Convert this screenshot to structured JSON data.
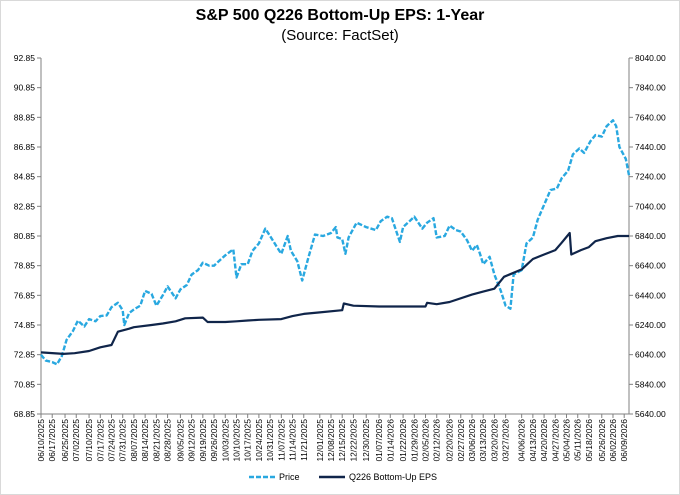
{
  "chart_data": {
    "type": "line",
    "title": "S&P 500 Q226 Bottom-Up EPS: 1-Year",
    "subtitle": "(Source: FactSet)",
    "colors": {
      "price": "#29a8e0",
      "eps": "#10254a"
    },
    "y_left": {
      "ylim": [
        68.85,
        92.85
      ],
      "ticks": [
        "92.85",
        "90.85",
        "88.85",
        "86.85",
        "84.85",
        "82.85",
        "80.85",
        "78.85",
        "76.85",
        "74.85",
        "72.85",
        "70.85",
        "68.85"
      ]
    },
    "y_right": {
      "ylim": [
        5640,
        8040
      ],
      "ticks": [
        "8040.00",
        "7840.00",
        "7640.00",
        "7440.00",
        "7240.00",
        "7040.00",
        "6840.00",
        "6640.00",
        "6440.00",
        "6240.00",
        "6040.00",
        "5840.00",
        "5640.00"
      ]
    },
    "x_ticks": [
      "06/10/2025",
      "06/17/2025",
      "06/25/2025",
      "07/02/2025",
      "07/10/2025",
      "07/17/2025",
      "07/24/2025",
      "07/31/2025",
      "08/07/2025",
      "08/14/2025",
      "08/21/2025",
      "08/28/2025",
      "09/05/2025",
      "09/12/2025",
      "09/19/2025",
      "09/26/2025",
      "10/03/2025",
      "10/10/2025",
      "10/17/2025",
      "10/24/2025",
      "10/31/2025",
      "11/07/2025",
      "11/14/2025",
      "11/21/2025",
      "12/01/2025",
      "12/08/2025",
      "12/15/2025",
      "12/22/2025",
      "12/30/2025",
      "01/07/2026",
      "01/14/2026",
      "01/22/2026",
      "01/29/2026",
      "02/05/2026",
      "02/12/2026",
      "02/20/2026",
      "02/27/2026",
      "03/06/2026",
      "03/13/2026",
      "03/20/2026",
      "03/27/2026",
      "04/06/2026",
      "04/13/2026",
      "04/20/2026",
      "04/27/2026",
      "05/04/2026",
      "05/11/2026",
      "05/18/2026",
      "05/26/2026",
      "06/02/2026",
      "06/09/2026"
    ],
    "x_range": [
      "06/10/2025",
      "06/12/2026"
    ],
    "series": [
      {
        "name": "Price",
        "axis": "right",
        "style": "dashed",
        "points": [
          [
            "06/10/2025",
            6040
          ],
          [
            "06/13/2025",
            6000
          ],
          [
            "06/17/2025",
            5990
          ],
          [
            "06/20/2025",
            5975
          ],
          [
            "06/23/2025",
            6030
          ],
          [
            "06/26/2025",
            6140
          ],
          [
            "06/30/2025",
            6200
          ],
          [
            "07/03/2025",
            6270
          ],
          [
            "07/07/2025",
            6230
          ],
          [
            "07/10/2025",
            6280
          ],
          [
            "07/14/2025",
            6265
          ],
          [
            "07/17/2025",
            6300
          ],
          [
            "07/21/2025",
            6305
          ],
          [
            "07/24/2025",
            6360
          ],
          [
            "07/28/2025",
            6390
          ],
          [
            "07/31/2025",
            6340
          ],
          [
            "08/01/2025",
            6240
          ],
          [
            "08/04/2025",
            6320
          ],
          [
            "08/07/2025",
            6345
          ],
          [
            "08/11/2025",
            6370
          ],
          [
            "08/14/2025",
            6470
          ],
          [
            "08/18/2025",
            6450
          ],
          [
            "08/21/2025",
            6370
          ],
          [
            "08/25/2025",
            6440
          ],
          [
            "08/28/2025",
            6500
          ],
          [
            "09/02/2025",
            6420
          ],
          [
            "09/05/2025",
            6480
          ],
          [
            "09/09/2025",
            6510
          ],
          [
            "09/12/2025",
            6580
          ],
          [
            "09/16/2025",
            6610
          ],
          [
            "09/19/2025",
            6660
          ],
          [
            "09/23/2025",
            6640
          ],
          [
            "09/26/2025",
            6640
          ],
          [
            "09/30/2025",
            6680
          ],
          [
            "10/03/2025",
            6710
          ],
          [
            "10/08/2025",
            6750
          ],
          [
            "10/10/2025",
            6560
          ],
          [
            "10/13/2025",
            6650
          ],
          [
            "10/17/2025",
            6650
          ],
          [
            "10/20/2025",
            6740
          ],
          [
            "10/24/2025",
            6790
          ],
          [
            "10/28/2025",
            6890
          ],
          [
            "10/31/2025",
            6840
          ],
          [
            "11/04/2025",
            6770
          ],
          [
            "11/07/2025",
            6720
          ],
          [
            "11/11/2025",
            6840
          ],
          [
            "11/13/2025",
            6740
          ],
          [
            "11/17/2025",
            6670
          ],
          [
            "11/20/2025",
            6540
          ],
          [
            "11/24/2025",
            6700
          ],
          [
            "11/28/2025",
            6850
          ],
          [
            "12/03/2025",
            6840
          ],
          [
            "12/08/2025",
            6860
          ],
          [
            "12/11/2025",
            6900
          ],
          [
            "12/12/2025",
            6830
          ],
          [
            "12/15/2025",
            6820
          ],
          [
            "12/17/2025",
            6720
          ],
          [
            "12/19/2025",
            6830
          ],
          [
            "12/24/2025",
            6930
          ],
          [
            "12/30/2025",
            6900
          ],
          [
            "01/05/2026",
            6880
          ],
          [
            "01/08/2026",
            6940
          ],
          [
            "01/12/2026",
            6970
          ],
          [
            "01/15/2026",
            6960
          ],
          [
            "01/20/2026",
            6800
          ],
          [
            "01/22/2026",
            6900
          ],
          [
            "01/26/2026",
            6940
          ],
          [
            "01/29/2026",
            6970
          ],
          [
            "02/03/2026",
            6890
          ],
          [
            "02/06/2026",
            6930
          ],
          [
            "02/10/2026",
            6960
          ],
          [
            "02/12/2026",
            6830
          ],
          [
            "02/17/2026",
            6840
          ],
          [
            "02/20/2026",
            6910
          ],
          [
            "02/24/2026",
            6880
          ],
          [
            "02/27/2026",
            6870
          ],
          [
            "03/03/2026",
            6810
          ],
          [
            "03/06/2026",
            6740
          ],
          [
            "03/09/2026",
            6780
          ],
          [
            "03/11/2026",
            6720
          ],
          [
            "03/13/2026",
            6650
          ],
          [
            "03/17/2026",
            6700
          ],
          [
            "03/20/2026",
            6580
          ],
          [
            "03/24/2026",
            6470
          ],
          [
            "03/27/2026",
            6370
          ],
          [
            "03/30/2026",
            6350
          ],
          [
            "04/01/2026",
            6580
          ],
          [
            "04/06/2026",
            6610
          ],
          [
            "04/09/2026",
            6790
          ],
          [
            "04/13/2026",
            6830
          ],
          [
            "04/16/2026",
            6950
          ],
          [
            "04/20/2026",
            7050
          ],
          [
            "04/24/2026",
            7150
          ],
          [
            "04/28/2026",
            7160
          ],
          [
            "05/01/2026",
            7230
          ],
          [
            "05/05/2026",
            7280
          ],
          [
            "05/08/2026",
            7390
          ],
          [
            "05/12/2026",
            7430
          ],
          [
            "05/15/2026",
            7400
          ],
          [
            "05/19/2026",
            7480
          ],
          [
            "05/22/2026",
            7520
          ],
          [
            "05/26/2026",
            7510
          ],
          [
            "05/29/2026",
            7580
          ],
          [
            "06/02/2026",
            7620
          ],
          [
            "06/04/2026",
            7580
          ],
          [
            "06/06/2026",
            7440
          ],
          [
            "06/08/2026",
            7400
          ],
          [
            "06/10/2026",
            7360
          ],
          [
            "06/12/2026",
            7250
          ]
        ]
      },
      {
        "name": "Q226 Bottom-Up EPS",
        "axis": "left",
        "style": "solid",
        "points": [
          [
            "06/10/2025",
            73.0
          ],
          [
            "06/24/2025",
            72.9
          ],
          [
            "07/01/2025",
            72.95
          ],
          [
            "07/10/2025",
            73.1
          ],
          [
            "07/17/2025",
            73.35
          ],
          [
            "07/24/2025",
            73.5
          ],
          [
            "07/28/2025",
            74.4
          ],
          [
            "08/04/2025",
            74.6
          ],
          [
            "08/07/2025",
            74.7
          ],
          [
            "08/18/2025",
            74.85
          ],
          [
            "08/25/2025",
            74.95
          ],
          [
            "09/02/2025",
            75.1
          ],
          [
            "09/08/2025",
            75.3
          ],
          [
            "09/19/2025",
            75.35
          ],
          [
            "09/22/2025",
            75.05
          ],
          [
            "10/03/2025",
            75.05
          ],
          [
            "10/10/2025",
            75.1
          ],
          [
            "10/17/2025",
            75.15
          ],
          [
            "10/24/2025",
            75.2
          ],
          [
            "11/07/2025",
            75.25
          ],
          [
            "11/14/2025",
            75.45
          ],
          [
            "11/21/2025",
            75.6
          ],
          [
            "12/01/2025",
            75.7
          ],
          [
            "12/15/2025",
            75.85
          ],
          [
            "12/16/2025",
            76.3
          ],
          [
            "12/22/2025",
            76.15
          ],
          [
            "01/07/2026",
            76.1
          ],
          [
            "02/05/2026",
            76.1
          ],
          [
            "02/06/2026",
            76.35
          ],
          [
            "02/12/2026",
            76.25
          ],
          [
            "02/20/2026",
            76.4
          ],
          [
            "03/06/2026",
            76.9
          ],
          [
            "03/13/2026",
            77.1
          ],
          [
            "03/20/2026",
            77.3
          ],
          [
            "03/26/2026",
            78.1
          ],
          [
            "04/06/2026",
            78.6
          ],
          [
            "04/10/2026",
            79.0
          ],
          [
            "04/13/2026",
            79.3
          ],
          [
            "04/20/2026",
            79.6
          ],
          [
            "04/27/2026",
            79.9
          ],
          [
            "05/01/2026",
            80.4
          ],
          [
            "05/06/2026",
            81.05
          ],
          [
            "05/07/2026",
            79.6
          ],
          [
            "05/13/2026",
            79.9
          ],
          [
            "05/18/2026",
            80.1
          ],
          [
            "05/22/2026",
            80.5
          ],
          [
            "05/29/2026",
            80.7
          ],
          [
            "06/05/2026",
            80.85
          ],
          [
            "06/12/2026",
            80.85
          ]
        ]
      }
    ],
    "legend_position": "bottom-center",
    "grid": false
  }
}
